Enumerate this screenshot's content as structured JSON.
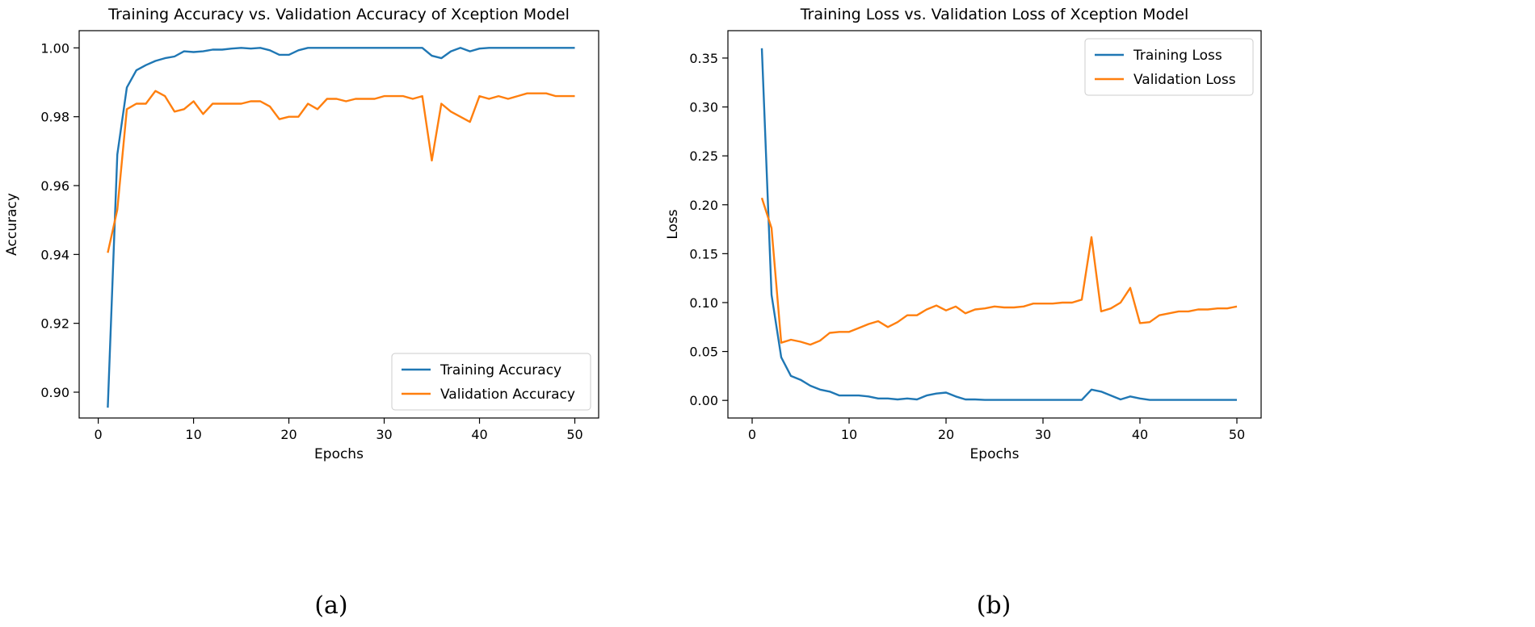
{
  "chart_data": [
    {
      "id": "a",
      "type": "line",
      "title": "Training Accuracy vs. Validation Accuracy of Xception Model",
      "xlabel": "Epochs",
      "ylabel": "Accuracy",
      "xlim": [
        -2,
        52.5
      ],
      "ylim": [
        0.8925,
        1.005
      ],
      "xticks": [
        0,
        10,
        20,
        30,
        40,
        50
      ],
      "xtick_labels": [
        "0",
        "10",
        "20",
        "30",
        "40",
        "50"
      ],
      "yticks": [
        0.9,
        0.92,
        0.94,
        0.96,
        0.98,
        1.0
      ],
      "ytick_labels": [
        "0.90",
        "0.92",
        "0.94",
        "0.96",
        "0.98",
        "1.00"
      ],
      "legend_position": "lower-right",
      "caption": "(a)",
      "x": [
        1,
        2,
        3,
        4,
        5,
        6,
        7,
        8,
        9,
        10,
        11,
        12,
        13,
        14,
        15,
        16,
        17,
        18,
        19,
        20,
        21,
        22,
        23,
        24,
        25,
        26,
        27,
        28,
        29,
        30,
        31,
        32,
        33,
        34,
        35,
        36,
        37,
        38,
        39,
        40,
        41,
        42,
        43,
        44,
        45,
        46,
        47,
        48,
        49,
        50
      ],
      "series": [
        {
          "name": "Training Accuracy",
          "color": "#1f77b4",
          "values": [
            0.8955,
            0.969,
            0.9885,
            0.9935,
            0.995,
            0.9962,
            0.997,
            0.9975,
            0.999,
            0.9988,
            0.999,
            0.9995,
            0.9995,
            0.9998,
            1.0,
            0.9998,
            1.0,
            0.9993,
            0.998,
            0.998,
            0.9993,
            1.0,
            1.0,
            1.0,
            1.0,
            1.0,
            1.0,
            1.0,
            1.0,
            1.0,
            1.0,
            1.0,
            1.0,
            1.0,
            0.9977,
            0.997,
            0.999,
            1.0,
            0.999,
            0.9998,
            1.0,
            1.0,
            1.0,
            1.0,
            1.0,
            1.0,
            1.0,
            1.0,
            1.0,
            1.0
          ]
        },
        {
          "name": "Validation Accuracy",
          "color": "#ff7f0e",
          "values": [
            0.9405,
            0.953,
            0.9822,
            0.9838,
            0.9838,
            0.9875,
            0.986,
            0.9815,
            0.9822,
            0.9845,
            0.9808,
            0.9838,
            0.9838,
            0.9838,
            0.9838,
            0.9845,
            0.9845,
            0.983,
            0.9793,
            0.98,
            0.98,
            0.9838,
            0.9822,
            0.9852,
            0.9852,
            0.9845,
            0.9852,
            0.9852,
            0.9852,
            0.986,
            0.986,
            0.986,
            0.9852,
            0.986,
            0.9673,
            0.9838,
            0.9815,
            0.98,
            0.9785,
            0.986,
            0.9852,
            0.986,
            0.9852,
            0.986,
            0.9868,
            0.9868,
            0.9868,
            0.986,
            0.986,
            0.986
          ]
        }
      ]
    },
    {
      "id": "b",
      "type": "line",
      "title": "Training Loss vs. Validation Loss of Xception Model",
      "xlabel": "Epochs",
      "ylabel": "Loss",
      "xlim": [
        -2.5,
        52.5
      ],
      "ylim": [
        -0.018,
        0.378
      ],
      "xticks": [
        0,
        10,
        20,
        30,
        40,
        50
      ],
      "xtick_labels": [
        "0",
        "10",
        "20",
        "30",
        "40",
        "50"
      ],
      "yticks": [
        0.0,
        0.05,
        0.1,
        0.15,
        0.2,
        0.25,
        0.3,
        0.35
      ],
      "ytick_labels": [
        "0.00",
        "0.05",
        "0.10",
        "0.15",
        "0.20",
        "0.25",
        "0.30",
        "0.35"
      ],
      "legend_position": "upper-right",
      "caption": "(b)",
      "x": [
        1,
        2,
        3,
        4,
        5,
        6,
        7,
        8,
        9,
        10,
        11,
        12,
        13,
        14,
        15,
        16,
        17,
        18,
        19,
        20,
        21,
        22,
        23,
        24,
        25,
        26,
        27,
        28,
        29,
        30,
        31,
        32,
        33,
        34,
        35,
        36,
        37,
        38,
        39,
        40,
        41,
        42,
        43,
        44,
        45,
        46,
        47,
        48,
        49,
        50
      ],
      "series": [
        {
          "name": "Training Loss",
          "color": "#1f77b4",
          "values": [
            0.36,
            0.108,
            0.044,
            0.025,
            0.021,
            0.015,
            0.011,
            0.009,
            0.005,
            0.005,
            0.005,
            0.004,
            0.002,
            0.002,
            0.001,
            0.002,
            0.001,
            0.005,
            0.007,
            0.008,
            0.004,
            0.001,
            0.001,
            0.0005,
            0.0005,
            0.0005,
            0.0005,
            0.0005,
            0.0005,
            0.0005,
            0.0005,
            0.0005,
            0.0005,
            0.0005,
            0.011,
            0.009,
            0.005,
            0.001,
            0.004,
            0.002,
            0.0005,
            0.0005,
            0.0005,
            0.0005,
            0.0005,
            0.0005,
            0.0005,
            0.0005,
            0.0005,
            0.0005
          ]
        },
        {
          "name": "Validation Loss",
          "color": "#ff7f0e",
          "values": [
            0.207,
            0.176,
            0.059,
            0.062,
            0.06,
            0.057,
            0.061,
            0.069,
            0.07,
            0.07,
            0.074,
            0.078,
            0.081,
            0.075,
            0.08,
            0.087,
            0.087,
            0.093,
            0.097,
            0.092,
            0.096,
            0.089,
            0.093,
            0.094,
            0.096,
            0.095,
            0.095,
            0.096,
            0.099,
            0.099,
            0.099,
            0.1,
            0.1,
            0.103,
            0.167,
            0.091,
            0.094,
            0.1,
            0.115,
            0.079,
            0.08,
            0.087,
            0.089,
            0.091,
            0.091,
            0.093,
            0.093,
            0.094,
            0.094,
            0.096
          ]
        }
      ]
    }
  ]
}
